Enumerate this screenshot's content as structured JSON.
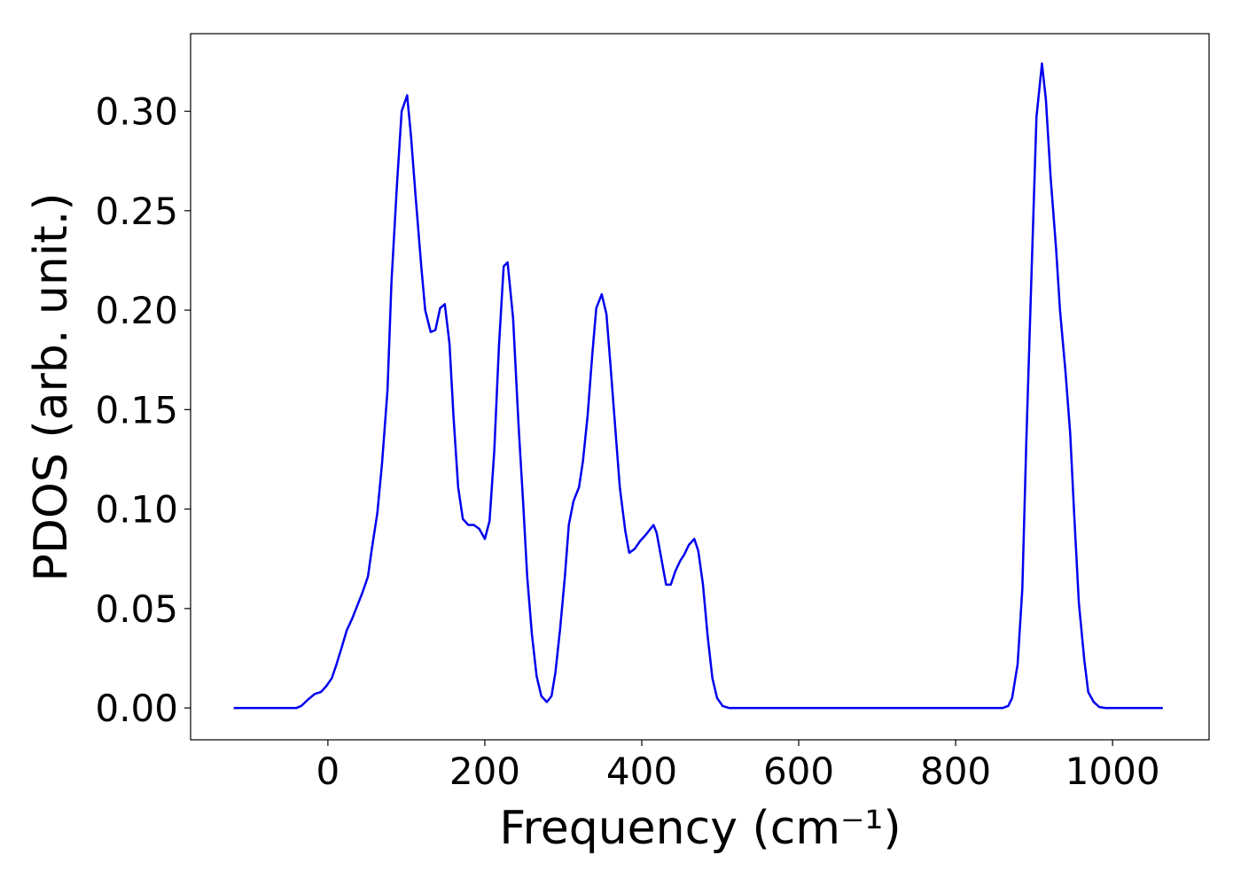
{
  "chart_data": {
    "type": "line",
    "xlabel": "Frequency (cm⁻¹)",
    "ylabel": "PDOS (arb. unit.)",
    "xlim": [
      -175,
      1123
    ],
    "ylim": [
      -0.016,
      0.339
    ],
    "xticks": [
      0,
      200,
      400,
      600,
      800,
      1000
    ],
    "yticks": [
      {
        "value": 0,
        "label": "0.00"
      },
      {
        "value": 0.05,
        "label": "0.05"
      },
      {
        "value": 0.1,
        "label": "0.10"
      },
      {
        "value": 0.15,
        "label": "0.15"
      },
      {
        "value": 0.2,
        "label": "0.20"
      },
      {
        "value": 0.25,
        "label": "0.25"
      },
      {
        "value": 0.3,
        "label": "0.30"
      }
    ],
    "series": [
      {
        "color": "#0000ee",
        "x": [
          -120,
          -40,
          -34,
          -26,
          -17,
          -9,
          -2,
          5,
          11,
          18,
          24,
          31,
          37,
          44,
          51,
          56,
          63,
          69,
          76,
          81,
          88,
          94,
          101,
          106,
          112,
          119,
          124,
          131,
          137,
          143,
          149,
          155,
          160,
          166,
          172,
          179,
          186,
          193,
          200,
          206,
          212,
          218,
          224,
          229,
          236,
          243,
          249,
          254,
          260,
          266,
          272,
          279,
          285,
          290,
          296,
          302,
          307,
          313,
          320,
          325,
          331,
          337,
          342,
          349,
          355,
          360,
          366,
          372,
          379,
          384,
          391,
          398,
          405,
          411,
          415,
          419,
          425,
          431,
          437,
          443,
          449,
          454,
          460,
          467,
          472,
          478,
          484,
          490,
          496,
          503,
          511,
          860,
          867,
          872,
          879,
          885,
          890,
          897,
          903,
          910,
          915,
          921,
          928,
          933,
          940,
          946,
          951,
          957,
          964,
          969,
          976,
          983,
          991,
          1064
        ],
        "values": [
          0,
          0,
          0.001,
          0.004,
          0.007,
          0.008,
          0.011,
          0.015,
          0.022,
          0.031,
          0.039,
          0.045,
          0.051,
          0.058,
          0.066,
          0.08,
          0.098,
          0.123,
          0.16,
          0.214,
          0.263,
          0.3,
          0.308,
          0.287,
          0.256,
          0.222,
          0.2,
          0.189,
          0.19,
          0.201,
          0.203,
          0.183,
          0.147,
          0.111,
          0.095,
          0.092,
          0.092,
          0.09,
          0.085,
          0.094,
          0.129,
          0.182,
          0.222,
          0.224,
          0.196,
          0.142,
          0.102,
          0.066,
          0.037,
          0.016,
          0.006,
          0.003,
          0.006,
          0.018,
          0.04,
          0.066,
          0.092,
          0.104,
          0.111,
          0.124,
          0.147,
          0.178,
          0.201,
          0.208,
          0.198,
          0.173,
          0.142,
          0.111,
          0.089,
          0.078,
          0.08,
          0.084,
          0.087,
          0.09,
          0.092,
          0.088,
          0.075,
          0.062,
          0.062,
          0.069,
          0.074,
          0.077,
          0.082,
          0.085,
          0.079,
          0.062,
          0.036,
          0.015,
          0.005,
          0.001,
          0,
          0,
          0.001,
          0.005,
          0.022,
          0.06,
          0.133,
          0.222,
          0.297,
          0.324,
          0.306,
          0.267,
          0.231,
          0.2,
          0.169,
          0.138,
          0.098,
          0.053,
          0.024,
          0.008,
          0.003,
          0.0005,
          0,
          0
        ]
      }
    ]
  }
}
